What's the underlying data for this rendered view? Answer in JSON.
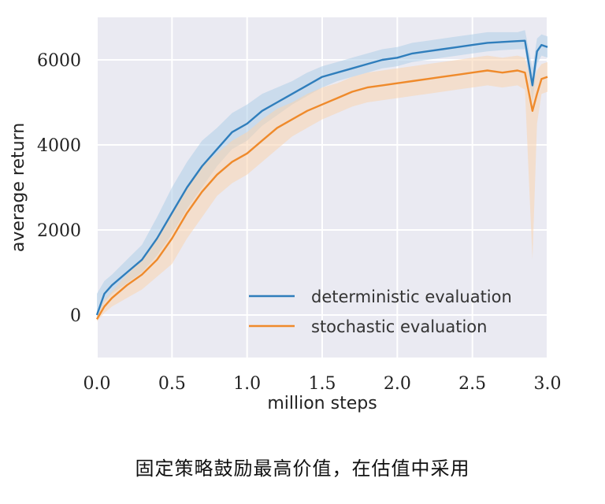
{
  "caption": "固定策略鼓励最高价值，在估值中采用",
  "chart_data": {
    "type": "line",
    "xlabel": "million steps",
    "ylabel": "average return",
    "xlim": [
      0.0,
      3.0
    ],
    "ylim": [
      -1000,
      7000
    ],
    "x_ticks": [
      "0.0",
      "0.5",
      "1.0",
      "1.5",
      "2.0",
      "2.5",
      "3.0"
    ],
    "x_tick_values": [
      0.0,
      0.5,
      1.0,
      1.5,
      2.0,
      2.5,
      3.0
    ],
    "y_ticks": [
      "0",
      "2000",
      "4000",
      "6000"
    ],
    "y_tick_values": [
      0,
      2000,
      4000,
      6000
    ],
    "grid": true,
    "legend_position": "lower-right",
    "x": [
      0.0,
      0.05,
      0.1,
      0.2,
      0.3,
      0.4,
      0.5,
      0.6,
      0.7,
      0.8,
      0.9,
      1.0,
      1.1,
      1.2,
      1.3,
      1.4,
      1.5,
      1.6,
      1.7,
      1.8,
      1.9,
      2.0,
      2.1,
      2.2,
      2.3,
      2.4,
      2.5,
      2.6,
      2.7,
      2.8,
      2.85,
      2.9,
      2.93,
      2.96,
      3.0
    ],
    "series": [
      {
        "name": "deterministic evaluation",
        "color": "#2f7ebc",
        "band_color": "#aecde8",
        "values": [
          0,
          500,
          700,
          1000,
          1300,
          1800,
          2400,
          3000,
          3500,
          3900,
          4300,
          4500,
          4800,
          5000,
          5200,
          5400,
          5600,
          5700,
          5800,
          5900,
          6000,
          6050,
          6150,
          6200,
          6250,
          6300,
          6350,
          6400,
          6420,
          6440,
          6450,
          5400,
          6200,
          6350,
          6300
        ],
        "lower": [
          -100,
          300,
          500,
          750,
          1000,
          1400,
          1900,
          2500,
          3000,
          3500,
          3900,
          4100,
          4450,
          4700,
          4950,
          5150,
          5350,
          5500,
          5600,
          5700,
          5800,
          5850,
          5950,
          6000,
          6050,
          6100,
          6150,
          6200,
          6230,
          6250,
          6250,
          5000,
          5900,
          6100,
          6050
        ],
        "upper": [
          500,
          800,
          950,
          1300,
          1650,
          2300,
          3000,
          3600,
          4100,
          4400,
          4750,
          4950,
          5200,
          5350,
          5500,
          5700,
          5850,
          5950,
          6050,
          6150,
          6250,
          6300,
          6400,
          6450,
          6500,
          6550,
          6600,
          6650,
          6650,
          6650,
          6700,
          5800,
          6500,
          6600,
          6550
        ]
      },
      {
        "name": "stochastic evaluation",
        "color": "#ef8a2b",
        "band_color": "#f9d3ae",
        "values": [
          -100,
          200,
          400,
          700,
          950,
          1300,
          1800,
          2400,
          2900,
          3300,
          3600,
          3800,
          4100,
          4400,
          4600,
          4800,
          4950,
          5100,
          5250,
          5350,
          5400,
          5450,
          5500,
          5550,
          5600,
          5650,
          5700,
          5750,
          5700,
          5750,
          5700,
          4800,
          5200,
          5550,
          5600
        ],
        "lower": [
          -150,
          50,
          200,
          400,
          600,
          900,
          1200,
          1800,
          2300,
          2800,
          3100,
          3300,
          3600,
          3900,
          4200,
          4400,
          4600,
          4750,
          4900,
          5000,
          5050,
          5100,
          5150,
          5200,
          5250,
          5300,
          5350,
          5400,
          5350,
          5400,
          5300,
          1300,
          4500,
          5200,
          5250
        ],
        "upper": [
          0,
          350,
          550,
          950,
          1300,
          1800,
          2400,
          3000,
          3500,
          3800,
          4100,
          4300,
          4600,
          4850,
          5000,
          5200,
          5350,
          5450,
          5600,
          5700,
          5750,
          5800,
          5850,
          5900,
          5950,
          6000,
          6050,
          6100,
          6050,
          6100,
          6050,
          5400,
          5750,
          5900,
          5950
        ]
      }
    ]
  }
}
